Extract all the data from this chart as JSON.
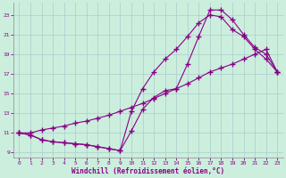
{
  "xlabel": "Windchill (Refroidissement éolien,°C)",
  "bg_color": "#cceedd",
  "line_color": "#880088",
  "xlim": [
    -0.5,
    23.5
  ],
  "ylim": [
    8.5,
    24.2
  ],
  "xticks": [
    0,
    1,
    2,
    3,
    4,
    5,
    6,
    7,
    8,
    9,
    10,
    11,
    12,
    13,
    14,
    15,
    16,
    17,
    18,
    19,
    20,
    21,
    22,
    23
  ],
  "yticks": [
    9,
    11,
    13,
    15,
    17,
    19,
    21,
    23
  ],
  "curve1_x": [
    0,
    1,
    2,
    3,
    4,
    5,
    6,
    7,
    8,
    9,
    10,
    11,
    12,
    13,
    14,
    15,
    16,
    17,
    18,
    19,
    20,
    21,
    22,
    23
  ],
  "curve1_y": [
    11.0,
    10.8,
    10.3,
    10.1,
    10.0,
    9.9,
    9.8,
    9.6,
    9.4,
    9.2,
    11.2,
    13.4,
    14.6,
    15.3,
    15.5,
    18.0,
    20.8,
    23.5,
    23.5,
    22.5,
    21.0,
    19.7,
    19.0,
    17.2
  ],
  "curve2_x": [
    0,
    1,
    2,
    3,
    4,
    5,
    6,
    7,
    8,
    9,
    10,
    11,
    12,
    13,
    14,
    15,
    16,
    17,
    18,
    19,
    20,
    21,
    22,
    23
  ],
  "curve2_y": [
    11.0,
    10.8,
    10.3,
    10.1,
    10.0,
    9.9,
    9.8,
    9.6,
    9.4,
    9.2,
    13.2,
    15.5,
    17.2,
    18.5,
    19.5,
    20.8,
    22.2,
    23.0,
    22.8,
    21.5,
    20.8,
    19.5,
    18.5,
    17.2
  ],
  "curve3_x": [
    0,
    1,
    2,
    3,
    4,
    5,
    6,
    7,
    8,
    9,
    10,
    11,
    12,
    13,
    14,
    15,
    16,
    17,
    18,
    19,
    20,
    21,
    22,
    23
  ],
  "curve3_y": [
    11.0,
    11.0,
    11.3,
    11.5,
    11.7,
    12.0,
    12.2,
    12.5,
    12.8,
    13.2,
    13.6,
    14.0,
    14.5,
    15.0,
    15.5,
    16.0,
    16.6,
    17.2,
    17.6,
    18.0,
    18.5,
    19.0,
    19.5,
    17.2
  ]
}
